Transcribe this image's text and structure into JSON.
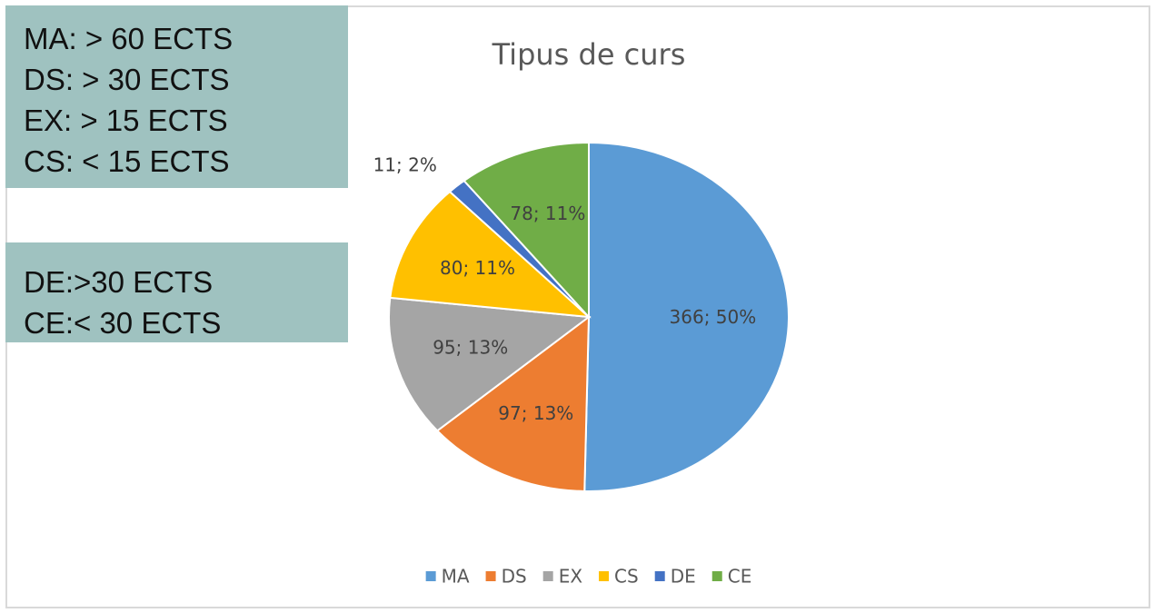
{
  "chart_data": {
    "type": "pie",
    "title": "Tipus de curs",
    "categories": [
      "MA",
      "DS",
      "EX",
      "CS",
      "DE",
      "CE"
    ],
    "values": [
      366,
      97,
      95,
      80,
      11,
      78
    ],
    "value_labels": [
      "366; 50%",
      "97; 13%",
      "95; 13%",
      "80; 11%",
      "11; 2%",
      "78; 11%"
    ],
    "colors": [
      "#5b9bd5",
      "#ed7d31",
      "#a5a5a5",
      "#ffc000",
      "#4472c4",
      "#70ad47"
    ],
    "legend": "bottom",
    "annotations": [
      [
        "MA: > 60 ECTS",
        "DS: > 30 ECTS",
        "EX: > 15 ECTS",
        "CS: < 15 ECTS"
      ],
      [
        "DE:>30 ECTS",
        "CE:< 30 ECTS"
      ]
    ]
  }
}
